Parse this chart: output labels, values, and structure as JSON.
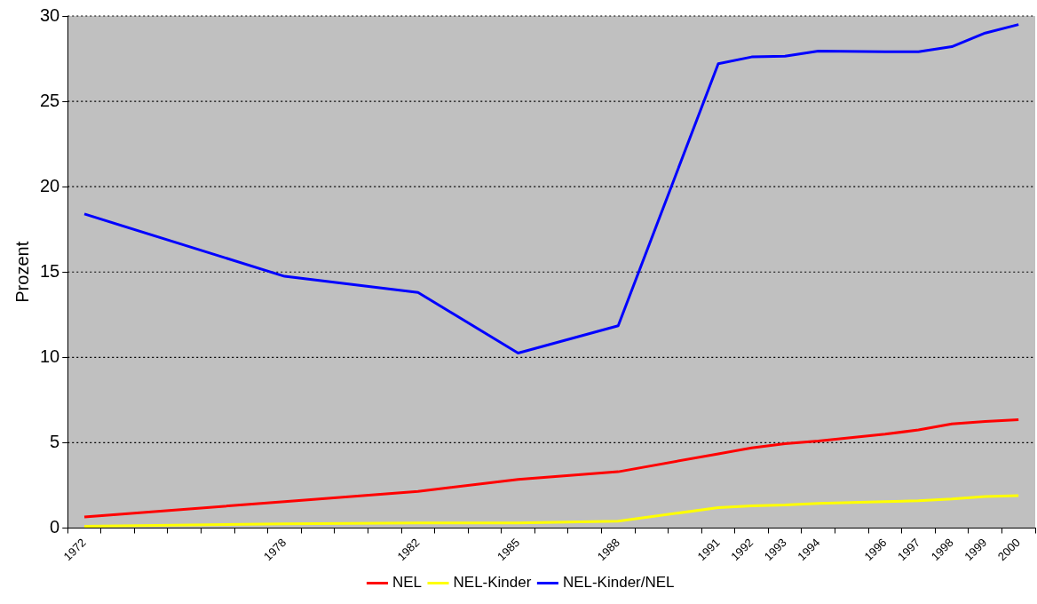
{
  "chart_data": {
    "type": "line",
    "ylabel": "Prozent",
    "categories": [
      "1972",
      null,
      null,
      null,
      null,
      null,
      "1978",
      null,
      null,
      null,
      "1982",
      null,
      null,
      "1985",
      null,
      null,
      "1988",
      null,
      null,
      "1991",
      "1992",
      "1993",
      "1994",
      null,
      "1996",
      "1997",
      "1998",
      "1999",
      "2000"
    ],
    "series": [
      {
        "name": "NEL",
        "color": "#ff0000",
        "values": [
          0.65,
          null,
          null,
          null,
          null,
          null,
          1.55,
          null,
          null,
          null,
          2.15,
          null,
          null,
          2.85,
          null,
          null,
          3.3,
          null,
          null,
          4.35,
          4.7,
          4.95,
          5.1,
          null,
          5.5,
          5.75,
          6.1,
          6.25,
          6.35
        ]
      },
      {
        "name": "NEL-Kinder",
        "color": "#ffff00",
        "values": [
          0.1,
          null,
          null,
          null,
          null,
          null,
          0.25,
          null,
          null,
          null,
          0.3,
          null,
          null,
          0.3,
          null,
          null,
          0.4,
          null,
          null,
          1.2,
          1.3,
          1.35,
          1.45,
          null,
          1.55,
          1.6,
          1.7,
          1.85,
          1.9
        ]
      },
      {
        "name": "NEL-Kinder/NEL",
        "color": "#0000ff",
        "values": [
          18.4,
          null,
          null,
          null,
          null,
          null,
          14.75,
          null,
          null,
          null,
          13.8,
          null,
          null,
          10.25,
          null,
          null,
          11.85,
          null,
          null,
          27.2,
          27.6,
          27.65,
          27.95,
          null,
          27.9,
          27.9,
          28.2,
          29.0,
          29.5
        ]
      }
    ],
    "ylim": [
      0,
      30
    ],
    "yticks": [
      0,
      5,
      10,
      15,
      20,
      25,
      30
    ],
    "grid": "y",
    "legend": "bottom",
    "marker": "none",
    "line_style": "solid"
  }
}
